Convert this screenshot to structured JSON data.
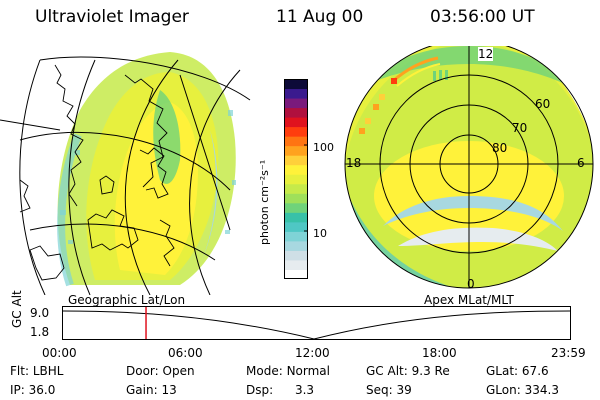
{
  "header": {
    "instrument": "Ultraviolet Imager",
    "date": "11 Aug 00",
    "time": "03:56:00 UT"
  },
  "colorbar": {
    "unit_label": "photon cm⁻²s⁻¹",
    "ticks": [
      "100",
      "10"
    ],
    "colors": [
      "#ffffff",
      "#e6ecef",
      "#cfdfe6",
      "#a8d8e0",
      "#7fd3d6",
      "#4fc7c4",
      "#38c1a8",
      "#6fd37a",
      "#9fe05a",
      "#c6ea4a",
      "#e7f03e",
      "#fff23a",
      "#ffd03a",
      "#ffa21e",
      "#ff7412",
      "#ff3d0e",
      "#e0121e",
      "#b0103e",
      "#7a1a7c",
      "#3a1a8e",
      "#0d0a38"
    ]
  },
  "geographic_panel": {
    "label": "Geographic Lat/Lon"
  },
  "apex_panel": {
    "label": "Apex MLat/MLT",
    "lat_labels": [
      "60",
      "70",
      "80"
    ],
    "mlt_labels": {
      "top": "12",
      "left": "18",
      "right": "6",
      "bottom": "0"
    }
  },
  "altitude_track": {
    "axis_label": "GC Alt",
    "y_ticks": [
      "9.0",
      "1.8"
    ],
    "x_ticks": [
      "00:00",
      "06:00",
      "12:00",
      "18:00",
      "23:59"
    ],
    "current_time_hours": 3.93
  },
  "status": {
    "row1": [
      {
        "label": "Flt:",
        "value": "LBHL"
      },
      {
        "label": "Door:",
        "value": "Open"
      },
      {
        "label": "Mode:",
        "value": "Normal"
      },
      {
        "label": "GC Alt:",
        "value": "9.3 Re"
      },
      {
        "label": "GLat:",
        "value": "67.6"
      }
    ],
    "row2": [
      {
        "label": "IP:",
        "value": "36.0"
      },
      {
        "label": "Gain:",
        "value": "13"
      },
      {
        "label": "Dsp:",
        "value": "3.3"
      },
      {
        "label": "Seq:",
        "value": "39"
      },
      {
        "label": "GLon:",
        "value": "334.3"
      }
    ]
  }
}
